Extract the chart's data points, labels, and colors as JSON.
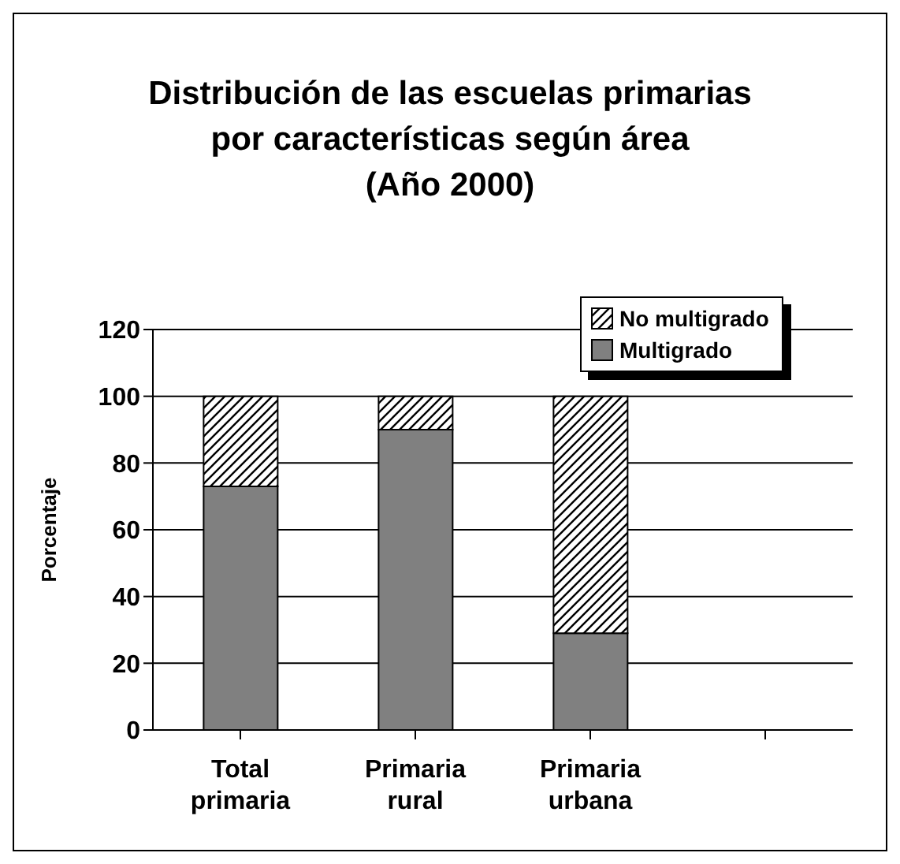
{
  "chart_data": {
    "type": "bar",
    "title": "Distribución de las escuelas primarias\npor características según área\n(Año 2000)",
    "ylabel": "Porcentaje",
    "categories": [
      "Total primaria",
      "Primaria rural",
      "Primaria urbana",
      null
    ],
    "series": [
      {
        "name": "Multigrado",
        "color": "#808080",
        "values": [
          73,
          90,
          29,
          null
        ]
      },
      {
        "name": "No multigrado",
        "color": "#000000",
        "values": [
          27,
          10,
          71,
          null
        ]
      }
    ],
    "stacked": true,
    "ylim": [
      0,
      120
    ],
    "yticks": [
      0,
      20,
      40,
      60,
      80,
      100,
      120
    ],
    "grid": "y",
    "legend": "top right"
  }
}
